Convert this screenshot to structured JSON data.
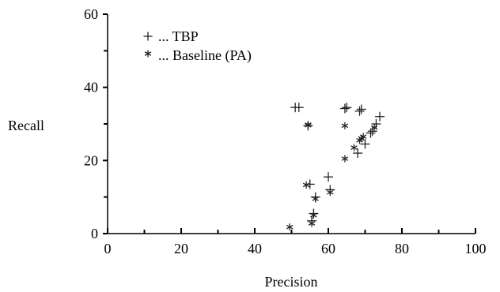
{
  "chart_data": {
    "type": "scatter",
    "title": "",
    "xlabel": "Precision",
    "ylabel": "Recall",
    "xlim": [
      0,
      100
    ],
    "ylim": [
      0,
      60
    ],
    "x_ticks": [
      0,
      20,
      40,
      60,
      80,
      100
    ],
    "y_ticks": [
      0,
      20,
      40,
      60
    ],
    "grid": false,
    "legend_position": "top-left",
    "series": [
      {
        "name": "TBP",
        "legend_label": "... TBP",
        "marker": "plus",
        "color": "#222222",
        "points": [
          {
            "x": 51,
            "y": 34.5
          },
          {
            "x": 52,
            "y": 34.5
          },
          {
            "x": 54.5,
            "y": 29.5
          },
          {
            "x": 64.5,
            "y": 34.2
          },
          {
            "x": 65,
            "y": 34.5
          },
          {
            "x": 68.5,
            "y": 33.5
          },
          {
            "x": 69,
            "y": 34
          },
          {
            "x": 73,
            "y": 30
          },
          {
            "x": 74,
            "y": 32
          },
          {
            "x": 70,
            "y": 24.5
          },
          {
            "x": 68,
            "y": 22
          },
          {
            "x": 71.5,
            "y": 27.5
          },
          {
            "x": 72,
            "y": 28
          },
          {
            "x": 55,
            "y": 13.5
          },
          {
            "x": 60,
            "y": 15.5
          },
          {
            "x": 60.5,
            "y": 12
          },
          {
            "x": 56.5,
            "y": 10
          },
          {
            "x": 56,
            "y": 5.5
          },
          {
            "x": 55.5,
            "y": 3.5
          }
        ]
      },
      {
        "name": "Baseline (PA)",
        "legend_label": "... Baseline (PA)",
        "marker": "asterisk",
        "color": "#222222",
        "points": [
          {
            "x": 49.5,
            "y": 1.8
          },
          {
            "x": 55.5,
            "y": 2.8
          },
          {
            "x": 56,
            "y": 5
          },
          {
            "x": 56.5,
            "y": 9.5
          },
          {
            "x": 54,
            "y": 13.3
          },
          {
            "x": 60.5,
            "y": 11.3
          },
          {
            "x": 64.5,
            "y": 20.5
          },
          {
            "x": 64.5,
            "y": 29.5
          },
          {
            "x": 54.5,
            "y": 29.6
          },
          {
            "x": 54.5,
            "y": 29.8
          },
          {
            "x": 67,
            "y": 23.5
          },
          {
            "x": 68.5,
            "y": 25.5
          },
          {
            "x": 69,
            "y": 26
          },
          {
            "x": 69.5,
            "y": 26.5
          },
          {
            "x": 72.5,
            "y": 29
          }
        ]
      }
    ]
  }
}
